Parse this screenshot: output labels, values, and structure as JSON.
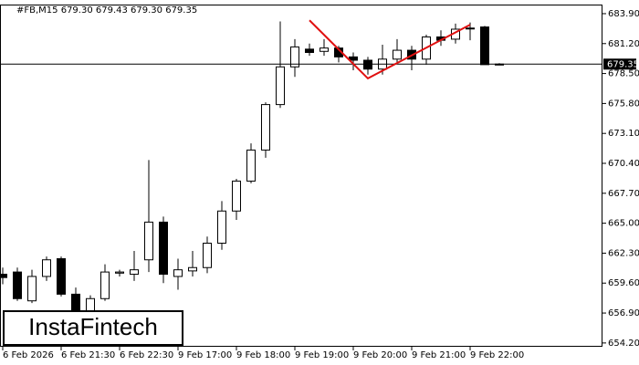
{
  "chart_data": {
    "type": "candlestick",
    "title": "#FB,M15  679.30 679.43 679.30 679.35",
    "categories": [
      "6 Feb 2026",
      null,
      null,
      null,
      "6 Feb 21:30",
      null,
      null,
      null,
      "6 Feb 22:30",
      null,
      null,
      null,
      "9 Feb 17:00",
      null,
      null,
      null,
      "9 Feb 18:00",
      null,
      null,
      null,
      "9 Feb 19:00",
      null,
      null,
      null,
      "9 Feb 20:00",
      null,
      null,
      null,
      "9 Feb 21:00",
      null,
      null,
      null,
      "9 Feb 22:00",
      null,
      null
    ],
    "open": [
      660.4,
      660.6,
      658.0,
      660.2,
      661.8,
      658.6,
      656.7,
      658.2,
      660.5,
      660.4,
      661.7,
      665.1,
      660.2,
      660.7,
      661.0,
      663.2,
      666.1,
      668.8,
      671.6,
      675.7,
      679.1,
      680.7,
      680.5,
      680.8,
      680.0,
      679.7,
      678.9,
      679.8,
      680.6,
      679.8,
      681.8,
      681.6,
      682.6,
      682.7,
      679.3
    ],
    "high": [
      661.0,
      661.0,
      660.8,
      662.0,
      662.0,
      659.2,
      658.5,
      661.3,
      660.8,
      662.5,
      670.7,
      665.6,
      661.8,
      662.5,
      663.8,
      667.0,
      669.0,
      672.2,
      675.9,
      683.2,
      681.6,
      681.2,
      681.6,
      681.0,
      680.4,
      680.0,
      681.1,
      681.6,
      681.0,
      682.0,
      682.4,
      683.0,
      683.1,
      682.8,
      679.43
    ],
    "low": [
      659.5,
      658.0,
      657.8,
      659.8,
      658.4,
      655.5,
      656.0,
      658.0,
      660.2,
      659.8,
      660.6,
      659.6,
      659.0,
      660.2,
      660.5,
      662.6,
      665.3,
      668.6,
      670.9,
      675.4,
      678.2,
      680.1,
      680.1,
      679.5,
      678.8,
      678.4,
      678.4,
      679.4,
      678.8,
      679.3,
      681.0,
      681.2,
      681.5,
      679.3,
      679.3
    ],
    "close": [
      660.1,
      658.2,
      660.2,
      661.7,
      658.6,
      656.7,
      658.2,
      660.6,
      660.6,
      660.8,
      665.1,
      660.4,
      660.8,
      661.0,
      663.2,
      666.1,
      668.8,
      671.6,
      675.7,
      679.1,
      680.9,
      680.4,
      680.8,
      680.0,
      679.7,
      678.9,
      679.8,
      680.6,
      679.8,
      681.8,
      681.5,
      682.5,
      682.6,
      679.3,
      679.35
    ],
    "ylim": [
      653.86,
      684.72
    ],
    "yticks": [
      {
        "value": 683.9,
        "label": "683.90"
      },
      {
        "value": 681.2,
        "label": "681.20"
      },
      {
        "value": 678.5,
        "label": "678.50"
      },
      {
        "value": 675.8,
        "label": "675.80"
      },
      {
        "value": 673.1,
        "label": "673.10"
      },
      {
        "value": 670.4,
        "label": "670.40"
      },
      {
        "value": 667.7,
        "label": "667.70"
      },
      {
        "value": 665.0,
        "label": "665.00"
      },
      {
        "value": 662.3,
        "label": "662.30"
      },
      {
        "value": 659.6,
        "label": "659.60"
      },
      {
        "value": 656.9,
        "label": "656.90"
      },
      {
        "value": 654.2,
        "label": "654.20"
      }
    ],
    "last_price": 679.35,
    "pattern": {
      "color": "#e01010",
      "indices": [
        21,
        25,
        32
      ],
      "values": [
        683.3,
        678.06,
        682.9
      ]
    },
    "watermark": "InstaFintech"
  }
}
